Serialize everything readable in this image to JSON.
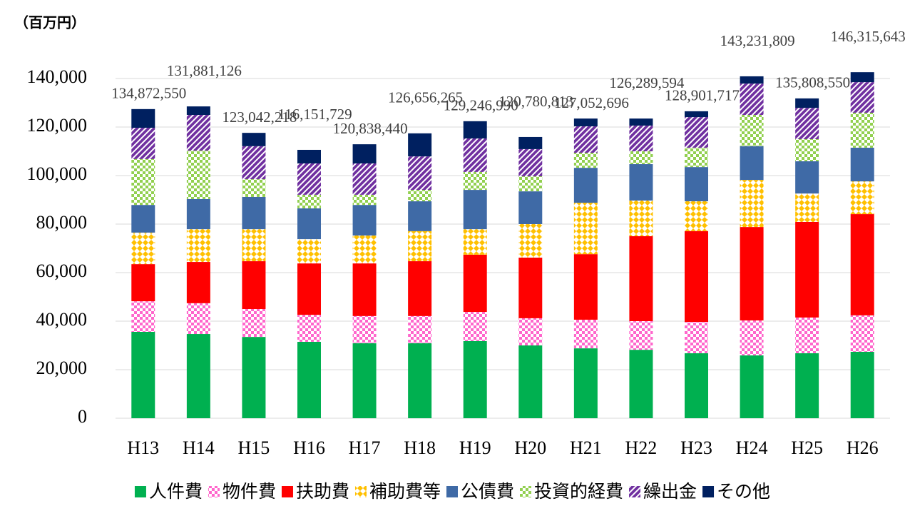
{
  "chart_data": {
    "type": "stacked_bar",
    "y_label": "（百万円）",
    "categories": [
      "H13",
      "H14",
      "H15",
      "H16",
      "H17",
      "H18",
      "H19",
      "H20",
      "H21",
      "H22",
      "H23",
      "H24",
      "H25",
      "H26"
    ],
    "series": [
      {
        "name": "人件費",
        "color": "#00b050",
        "pattern": "solid",
        "values": [
          35600,
          34700,
          33500,
          31500,
          30900,
          30900,
          31800,
          30000,
          28800,
          28200,
          26800,
          25900,
          26800,
          27400
        ]
      },
      {
        "name": "物件費",
        "color": "#ff66cc",
        "pattern": "checker",
        "values": [
          12600,
          12700,
          11500,
          11100,
          11200,
          11200,
          12000,
          11200,
          11800,
          11800,
          12900,
          14400,
          14700,
          15000
        ]
      },
      {
        "name": "扶助費",
        "color": "#ff0000",
        "pattern": "solid",
        "values": [
          15300,
          17000,
          19700,
          21200,
          21700,
          22600,
          23600,
          25000,
          27000,
          35000,
          37400,
          38500,
          39400,
          41700
        ]
      },
      {
        "name": "補助費等",
        "color": "#ffc000",
        "pattern": "diamond",
        "values": [
          13000,
          13500,
          13200,
          10000,
          11500,
          12400,
          10500,
          13800,
          21200,
          14700,
          12300,
          19400,
          11700,
          13500
        ]
      },
      {
        "name": "公債費",
        "color": "#3f6aa6",
        "pattern": "solid",
        "values": [
          11400,
          12400,
          13300,
          12700,
          12600,
          12300,
          16200,
          13500,
          14400,
          15000,
          14100,
          13900,
          13300,
          13900
        ]
      },
      {
        "name": "投資的経費",
        "color": "#92d050",
        "pattern": "checker",
        "values": [
          18900,
          20000,
          7300,
          5600,
          4200,
          4700,
          7400,
          6200,
          6200,
          5300,
          8000,
          12900,
          9100,
          14400
        ]
      },
      {
        "name": "繰出金",
        "color": "#7030a0",
        "pattern": "diagonal",
        "values": [
          12900,
          14700,
          13600,
          12900,
          12900,
          13800,
          13800,
          11200,
          10900,
          10600,
          12600,
          12900,
          12900,
          12600
        ]
      },
      {
        "name": "その他",
        "color": "#002060",
        "pattern": "solid",
        "values": [
          7700,
          3500,
          5500,
          5600,
          7900,
          9500,
          7100,
          5000,
          3200,
          2900,
          2400,
          3000,
          3900,
          4100
        ]
      }
    ],
    "annotations": [
      "134,872,550",
      "131,881,126",
      "123,042,218",
      "116,151,729",
      "120,838,440",
      "126,656,265",
      "129,246,990",
      "120,780,813",
      "127,052,696",
      "126,289,594",
      "128,901,717",
      "143,231,809",
      "135,808,550",
      "146,315,643"
    ],
    "ylim": [
      0,
      140000
    ],
    "yticks": [
      0,
      {
        "value": 20000,
        "label": "20,000"
      },
      {
        "value": 40000,
        "label": "40,000"
      },
      {
        "value": 60000,
        "label": "60,000"
      },
      {
        "value": 80000,
        "label": "80,000"
      },
      {
        "value": 100000,
        "label": "100,000"
      },
      {
        "value": 120000,
        "label": "120,000"
      },
      {
        "value": 140000,
        "label": "140,000"
      }
    ],
    "grid": true,
    "legend": "bottom"
  }
}
